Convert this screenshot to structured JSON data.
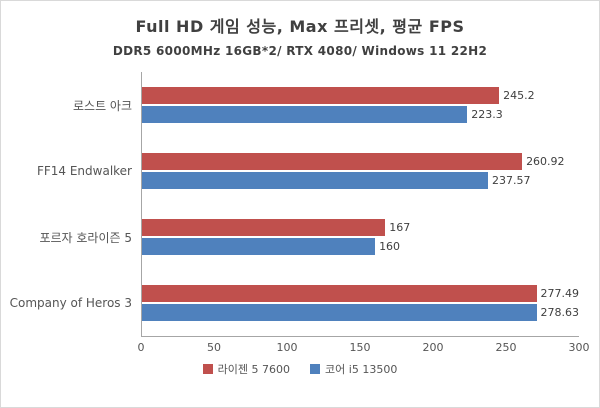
{
  "chart_data": {
    "type": "bar",
    "orientation": "horizontal",
    "title": "Full HD 게임 성능, Max 프리셋, 평균 FPS",
    "subtitle": "DDR5 6000MHz 16GB*2/ RTX 4080/ Windows 11 22H2",
    "categories": [
      "로스트 아크",
      "FF14 Endwalker",
      "포르자 호라이즌 5",
      "Company of Heros 3"
    ],
    "series": [
      {
        "name": "라이젠 5 7600",
        "color": "#c0504d",
        "values": [
          245.2,
          260.92,
          167,
          277.49
        ],
        "labels": [
          "245.2",
          "260.92",
          "167",
          "277.49"
        ]
      },
      {
        "name": "코어 i5 13500",
        "color": "#4f81bd",
        "values": [
          223.3,
          237.57,
          160,
          278.63
        ],
        "labels": [
          "223.3",
          "237.57",
          "160",
          "278.63"
        ]
      }
    ],
    "xlim": [
      0,
      300
    ],
    "x_ticks": [
      "0",
      "50",
      "100",
      "150",
      "200",
      "250",
      "300"
    ],
    "grid": false,
    "legend_position": "bottom",
    "axis_color": "#a6a6a6"
  }
}
